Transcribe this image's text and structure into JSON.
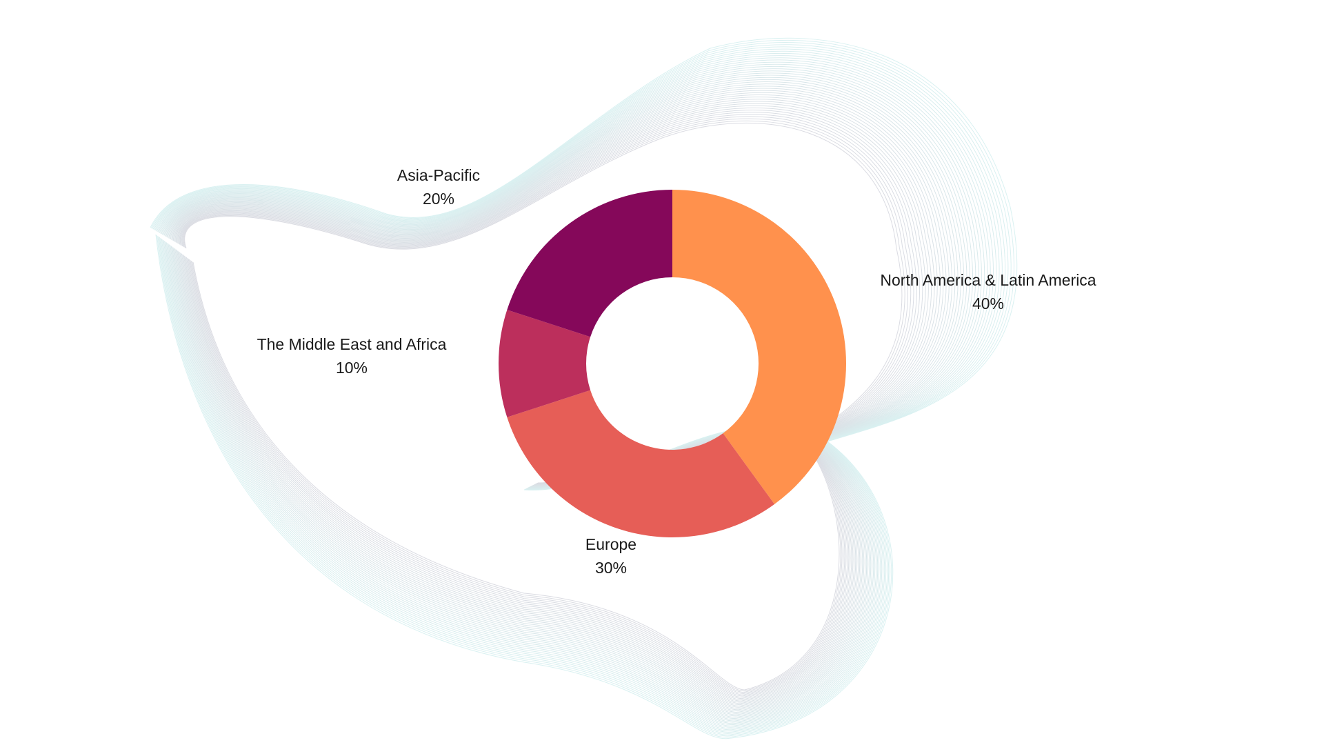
{
  "chart_data": {
    "type": "pie",
    "variant": "donut",
    "slices": [
      {
        "label": "North America & Latin America",
        "value_label": "40%",
        "value": 40,
        "color": "#FF914D"
      },
      {
        "label": "Europe",
        "value_label": "30%",
        "value": 30,
        "color": "#E65E57"
      },
      {
        "label": "The Middle East and Africa",
        "value_label": "10%",
        "value": 10,
        "color": "#BC2F5C"
      },
      {
        "label": "Asia-Pacific",
        "value_label": "20%",
        "value": 20,
        "color": "#85085A"
      }
    ],
    "start_angle": "top (12 o'clock)",
    "direction": "clockwise",
    "legend": "none"
  },
  "background": {
    "decoration": "wireframe-wave-mesh",
    "line_color_start": "#D9F1F1",
    "line_color_end": "#DADBE2"
  }
}
